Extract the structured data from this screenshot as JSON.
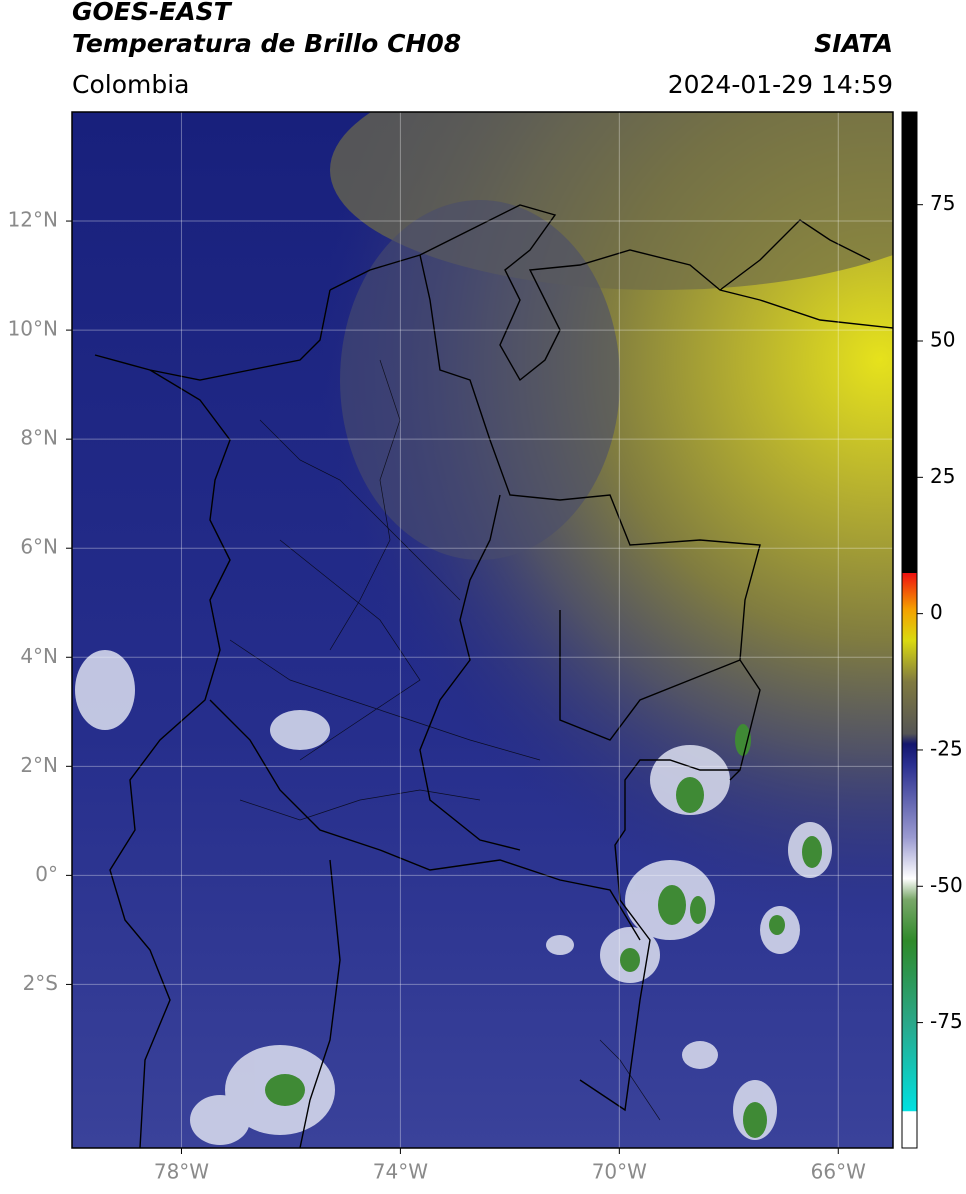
{
  "header": {
    "title_top": "GOES-EAST",
    "title_main": "Temperatura de Brillo CH08",
    "region": "Colombia",
    "source": "SIATA",
    "timestamp": "2024-01-29 14:59"
  },
  "map": {
    "xlim": [
      -80,
      -65
    ],
    "ylim": [
      -5,
      14
    ],
    "xticks": [
      {
        "value": -78,
        "label": "78°W"
      },
      {
        "value": -74,
        "label": "74°W"
      },
      {
        "value": -70,
        "label": "70°W"
      },
      {
        "value": -66,
        "label": "66°W"
      }
    ],
    "yticks": [
      {
        "value": 12,
        "label": "12°N"
      },
      {
        "value": 10,
        "label": "10°N"
      },
      {
        "value": 8,
        "label": "8°N"
      },
      {
        "value": 6,
        "label": "6°N"
      },
      {
        "value": 4,
        "label": "4°N"
      },
      {
        "value": 2,
        "label": "2°N"
      },
      {
        "value": 0,
        "label": "0°"
      },
      {
        "value": -2,
        "label": "2°S"
      }
    ],
    "grid": true
  },
  "colorbar": {
    "lim": [
      -98,
      92
    ],
    "ticks": [
      75,
      50,
      25,
      0,
      -25,
      -50,
      -75
    ]
  }
}
